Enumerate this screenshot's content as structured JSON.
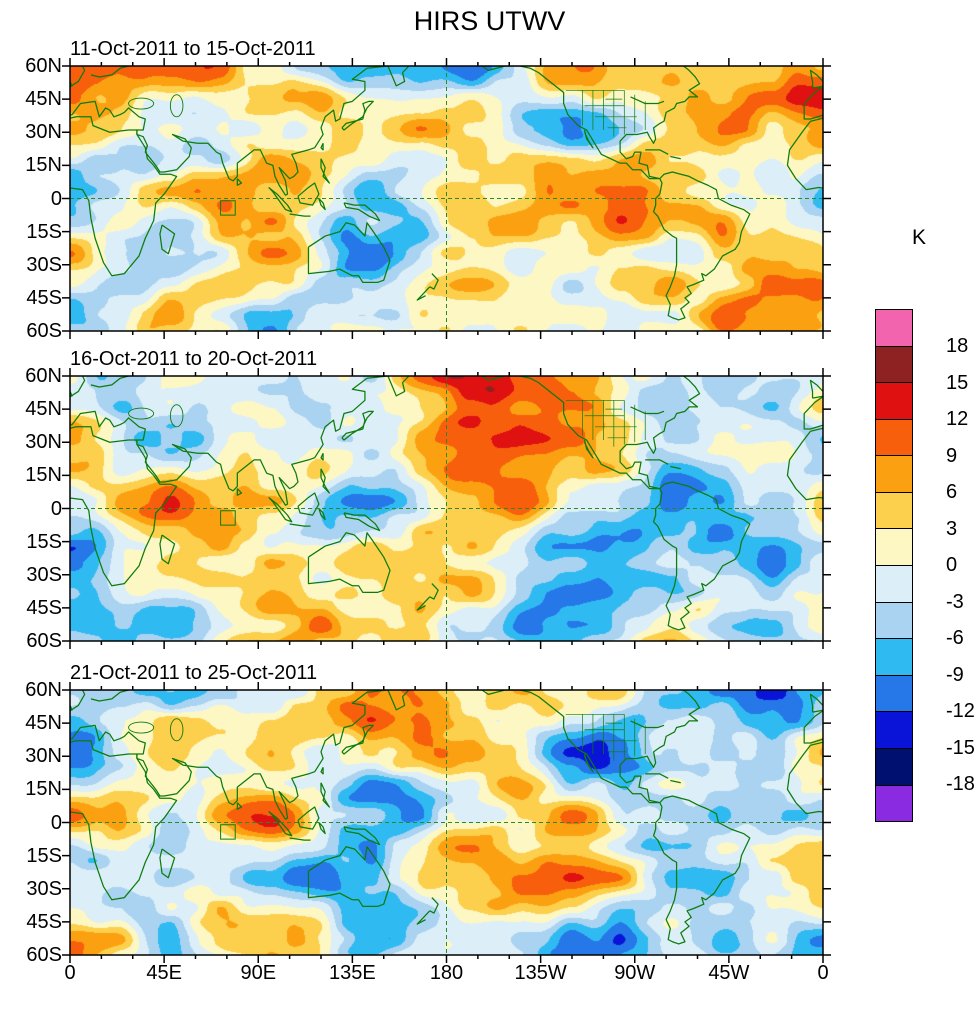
{
  "title": "HIRS UTWV",
  "panels": [
    {
      "label": "11-Oct-2011 to 15-Oct-2011"
    },
    {
      "label": "16-Oct-2011 to 20-Oct-2011"
    },
    {
      "label": "21-Oct-2011 to 25-Oct-2011"
    }
  ],
  "axes": {
    "lat_ticks": [
      "60N",
      "45N",
      "30N",
      "15N",
      "0",
      "15S",
      "30S",
      "45S",
      "60S"
    ],
    "lon_ticks": [
      "0",
      "45E",
      "90E",
      "135E",
      "180",
      "135W",
      "90W",
      "45W",
      "0"
    ]
  },
  "colorbar": {
    "unit": "K",
    "labels": [
      "18",
      "15",
      "12",
      "9",
      "6",
      "3",
      "0",
      "-3",
      "-6",
      "-9",
      "-12",
      "-15",
      "-18"
    ],
    "colors": [
      "#F264AE",
      "#8E2222",
      "#E01111",
      "#F85F0D",
      "#FBA111",
      "#FCCF4C",
      "#FDF7C4",
      "#DCEEF8",
      "#A9D3F0",
      "#30BAF2",
      "#2677E8",
      "#0A14D8",
      "#001070",
      "#8A2BE2"
    ]
  },
  "chart_data": {
    "type": "heatmap",
    "title": "HIRS UTWV",
    "unit": "K",
    "panels": [
      {
        "date_range": "11-Oct-2011 to 15-Oct-2011"
      },
      {
        "date_range": "16-Oct-2011 to 20-Oct-2011"
      },
      {
        "date_range": "21-Oct-2011 to 25-Oct-2011"
      }
    ],
    "contour_levels": [
      -18,
      -15,
      -12,
      -9,
      -6,
      -3,
      0,
      3,
      6,
      9,
      12,
      15,
      18
    ],
    "palette_top_to_bottom": [
      "#F264AE",
      "#8E2222",
      "#E01111",
      "#F85F0D",
      "#FBA111",
      "#FCCF4C",
      "#FDF7C4",
      "#DCEEF8",
      "#A9D3F0",
      "#30BAF2",
      "#2677E8",
      "#0A14D8",
      "#001070",
      "#8A2BE2"
    ],
    "x_axis": {
      "tick_labels": [
        "0",
        "45E",
        "90E",
        "135E",
        "180",
        "135W",
        "90W",
        "45W",
        "0"
      ],
      "range_deg_lon": [
        0,
        360
      ]
    },
    "y_axis": {
      "tick_labels": [
        "60N",
        "45N",
        "30N",
        "15N",
        "0",
        "15S",
        "30S",
        "45S",
        "60S"
      ],
      "range_deg_lat": [
        60,
        -60
      ]
    },
    "annotations": {
      "reference_lines": [
        "dashed equator line",
        "dashed 180 meridian line"
      ],
      "roi_box": "small outlined box near 75E, 4S in each panel",
      "coastline_color": "#0C7C0C"
    },
    "note": "Filled-contour anomaly maps; individual gridded values are not legible from the image, field rendered as representative anomaly pattern."
  }
}
